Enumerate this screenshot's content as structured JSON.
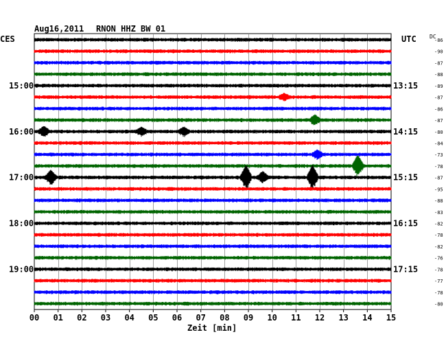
{
  "header": {
    "date": "Aug16,2011",
    "station": "RNON HHZ BW 01",
    "left_zone": "CES",
    "right_zone": "UTC",
    "dc_label": "DC"
  },
  "chart_data": {
    "type": "line",
    "title": "Aug16,2011   RNON HHZ BW 01",
    "xlabel": "Zeit [min]",
    "x_ticks": [
      "00",
      "01",
      "02",
      "03",
      "04",
      "05",
      "06",
      "07",
      "08",
      "09",
      "10",
      "11",
      "12",
      "13",
      "14",
      "15"
    ],
    "xlim": [
      0,
      15
    ],
    "grid": true,
    "trace_count": 24,
    "minutes_per_trace": 15,
    "trace_colors": [
      "#000000",
      "#ff0000",
      "#0000ff",
      "#006400"
    ],
    "left_hour_labels": [
      {
        "trace": 4,
        "label": "15:00"
      },
      {
        "trace": 8,
        "label": "16:00"
      },
      {
        "trace": 12,
        "label": "17:00"
      },
      {
        "trace": 16,
        "label": "18:00"
      },
      {
        "trace": 20,
        "label": "19:00"
      }
    ],
    "right_hour_labels": [
      {
        "trace": 4,
        "label": "13:15"
      },
      {
        "trace": 8,
        "label": "14:15"
      },
      {
        "trace": 12,
        "label": "15:15"
      },
      {
        "trace": 16,
        "label": "16:15"
      },
      {
        "trace": 20,
        "label": "17:15"
      }
    ],
    "dc_offsets": [
      "-86",
      "-90",
      "-87",
      "-88",
      "-89",
      "-87",
      "-86",
      "-87",
      "-80",
      "-84",
      "-73",
      "-78",
      "-87",
      "-95",
      "-88",
      "-83",
      "-82",
      "-78",
      "-82",
      "-76",
      "-78",
      "-77",
      "-78",
      "-80"
    ],
    "events": [
      {
        "trace": 12,
        "minute": 0.7,
        "amplitude": 0.9
      },
      {
        "trace": 12,
        "minute": 8.9,
        "amplitude": 1.6
      },
      {
        "trace": 12,
        "minute": 9.6,
        "amplitude": 0.7
      },
      {
        "trace": 12,
        "minute": 11.7,
        "amplitude": 1.6
      },
      {
        "trace": 11,
        "minute": 13.6,
        "amplitude": 1.4
      },
      {
        "trace": 10,
        "minute": 11.9,
        "amplitude": 0.5
      },
      {
        "trace": 8,
        "minute": 0.4,
        "amplitude": 0.6
      },
      {
        "trace": 8,
        "minute": 4.5,
        "amplitude": 0.5
      },
      {
        "trace": 8,
        "minute": 6.3,
        "amplitude": 0.5
      },
      {
        "trace": 7,
        "minute": 11.8,
        "amplitude": 0.6
      },
      {
        "trace": 5,
        "minute": 10.5,
        "amplitude": 0.4
      }
    ]
  }
}
